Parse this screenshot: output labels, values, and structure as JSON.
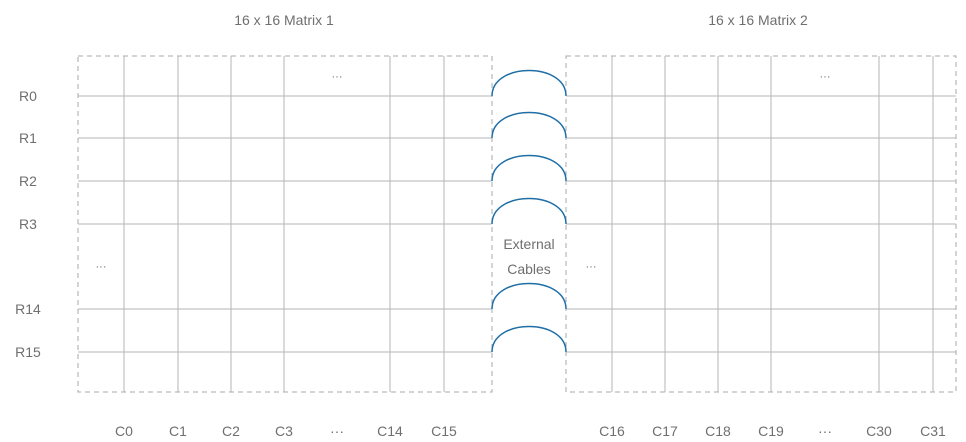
{
  "titles": {
    "matrix_1": "16 x 16 Matrix 1",
    "matrix_2": "16 x 16 Matrix 2"
  },
  "ellipsis": "···",
  "rows": [
    "R0",
    "R1",
    "R2",
    "R3",
    "R14",
    "R15"
  ],
  "matrix_1_columns": [
    "C0",
    "C1",
    "C2",
    "C3",
    "···",
    "C14",
    "C15"
  ],
  "matrix_2_columns": [
    "C16",
    "C17",
    "C18",
    "C19",
    "···",
    "C30",
    "C31"
  ],
  "cable_label": {
    "line_1": "External",
    "line_2": "Cables"
  },
  "colors": {
    "grid_line": "#b5b5b5",
    "border_dash": "#a8a8a8",
    "cable": "#1f6fa6",
    "text": "#6f6f6f"
  }
}
